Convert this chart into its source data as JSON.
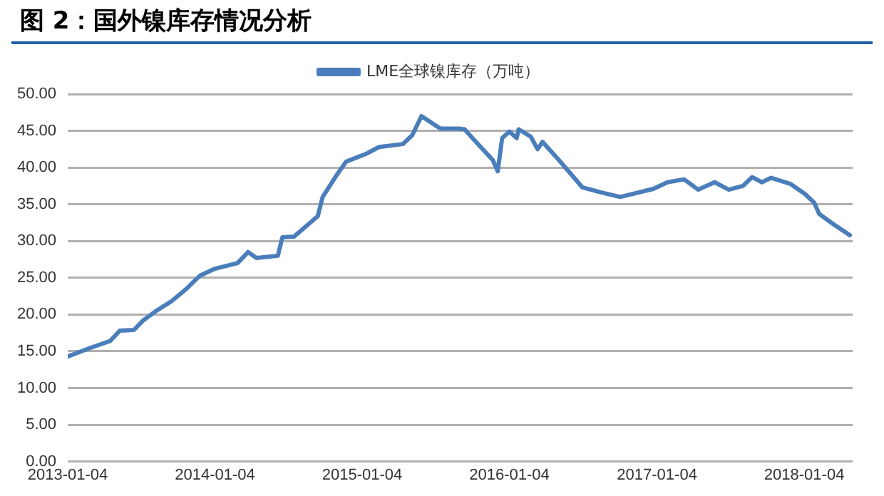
{
  "chart_data": {
    "type": "line",
    "title": "图 2：国外镍库存情况分析",
    "x": [
      "2013-01-04",
      "2013-03-03",
      "2013-04-19",
      "2013-05-13",
      "2013-06-17",
      "2013-07-10",
      "2013-08-14",
      "2013-09-18",
      "2013-10-23",
      "2013-11-28",
      "2014-01-02",
      "2014-03-01",
      "2014-03-27",
      "2014-04-17",
      "2014-06-09",
      "2014-06-20",
      "2014-07-19",
      "2014-09-16",
      "2014-09-28",
      "2014-11-02",
      "2014-11-25",
      "2015-01-11",
      "2015-02-15",
      "2015-04-15",
      "2015-05-08",
      "2015-05-31",
      "2015-07-17",
      "2015-09-01",
      "2015-09-15",
      "2015-10-08",
      "2015-11-24",
      "2015-12-06",
      "2015-12-17",
      "2016-01-04",
      "2016-01-22",
      "2016-01-27",
      "2016-02-26",
      "2016-03-14",
      "2016-03-26",
      "2016-05-06",
      "2016-07-03",
      "2016-08-19",
      "2016-10-05",
      "2016-12-26",
      "2017-01-30",
      "2017-03-12",
      "2017-04-16",
      "2017-05-27",
      "2017-07-01",
      "2017-08-05",
      "2017-08-28",
      "2017-09-21",
      "2017-10-14",
      "2017-11-30",
      "2018-01-06",
      "2018-01-29",
      "2018-02-10",
      "2018-03-17",
      "2018-04-27"
    ],
    "series": [
      {
        "name": "LME全球镍库存（万吨）",
        "color": "#4a7ebb",
        "values": [
          14.3,
          15.5,
          16.4,
          17.8,
          17.9,
          19.2,
          20.6,
          21.8,
          23.4,
          25.3,
          26.2,
          27.0,
          28.5,
          27.7,
          28.0,
          30.5,
          30.6,
          33.4,
          36.0,
          39.0,
          40.8,
          41.8,
          42.8,
          43.2,
          44.4,
          47.0,
          45.3,
          45.3,
          45.2,
          43.8,
          41.0,
          39.5,
          44.0,
          44.9,
          44.0,
          45.2,
          44.2,
          42.5,
          43.5,
          41.0,
          37.3,
          36.6,
          36.0,
          37.1,
          38.0,
          38.4,
          37.0,
          38.0,
          37.0,
          37.5,
          38.7,
          38.0,
          38.6,
          37.8,
          36.4,
          35.2,
          33.7,
          32.3,
          30.8
        ]
      }
    ],
    "xlim": [
      "2013-01-04",
      "2018-05-04"
    ],
    "xticks": [
      "2013-01-04",
      "2014-01-04",
      "2015-01-04",
      "2016-01-04",
      "2017-01-04",
      "2018-01-04"
    ],
    "ylim": [
      0,
      50
    ],
    "yticks": [
      {
        "value": 0,
        "label": "0.00"
      },
      {
        "value": 5,
        "label": "5.00"
      },
      {
        "value": 10,
        "label": "10.00"
      },
      {
        "value": 15,
        "label": "15.00"
      },
      {
        "value": 20,
        "label": "20.00"
      },
      {
        "value": 25,
        "label": "25.00"
      },
      {
        "value": 30,
        "label": "30.00"
      },
      {
        "value": 35,
        "label": "35.00"
      },
      {
        "value": 40,
        "label": "40.00"
      },
      {
        "value": 45,
        "label": "45.00"
      },
      {
        "value": 50,
        "label": "50.00"
      }
    ],
    "grid": "y",
    "legend": "top",
    "marker": "none",
    "line_style": "solid"
  }
}
